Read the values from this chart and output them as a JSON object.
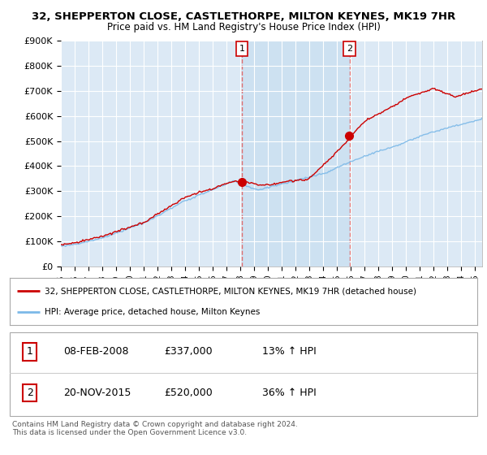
{
  "title1": "32, SHEPPERTON CLOSE, CASTLETHORPE, MILTON KEYNES, MK19 7HR",
  "title2": "Price paid vs. HM Land Registry's House Price Index (HPI)",
  "ylim": [
    0,
    900000
  ],
  "yticks": [
    0,
    100000,
    200000,
    300000,
    400000,
    500000,
    600000,
    700000,
    800000,
    900000
  ],
  "ytick_labels": [
    "£0",
    "£100K",
    "£200K",
    "£300K",
    "£400K",
    "£500K",
    "£600K",
    "£700K",
    "£800K",
    "£900K"
  ],
  "background_color": "#ffffff",
  "plot_bg_color": "#dce9f5",
  "shaded_region_color": "#c8dff0",
  "grid_color": "#ffffff",
  "purchase1_date": 2008.1,
  "purchase1_price": 337000,
  "purchase2_date": 2015.9,
  "purchase2_price": 520000,
  "vline_color": "#e06060",
  "house_line_color": "#cc0000",
  "hpi_line_color": "#7cb9e8",
  "marker_color": "#cc0000",
  "legend_house": "32, SHEPPERTON CLOSE, CASTLETHORPE, MILTON KEYNES, MK19 7HR (detached house)",
  "legend_hpi": "HPI: Average price, detached house, Milton Keynes",
  "table_row1": [
    "1",
    "08-FEB-2008",
    "£337,000",
    "13% ↑ HPI"
  ],
  "table_row2": [
    "2",
    "20-NOV-2015",
    "£520,000",
    "36% ↑ HPI"
  ],
  "footnote": "Contains HM Land Registry data © Crown copyright and database right 2024.\nThis data is licensed under the Open Government Licence v3.0.",
  "xmin": 1995,
  "xmax": 2025.5,
  "figwidth": 6.0,
  "figheight": 5.6,
  "dpi": 100
}
